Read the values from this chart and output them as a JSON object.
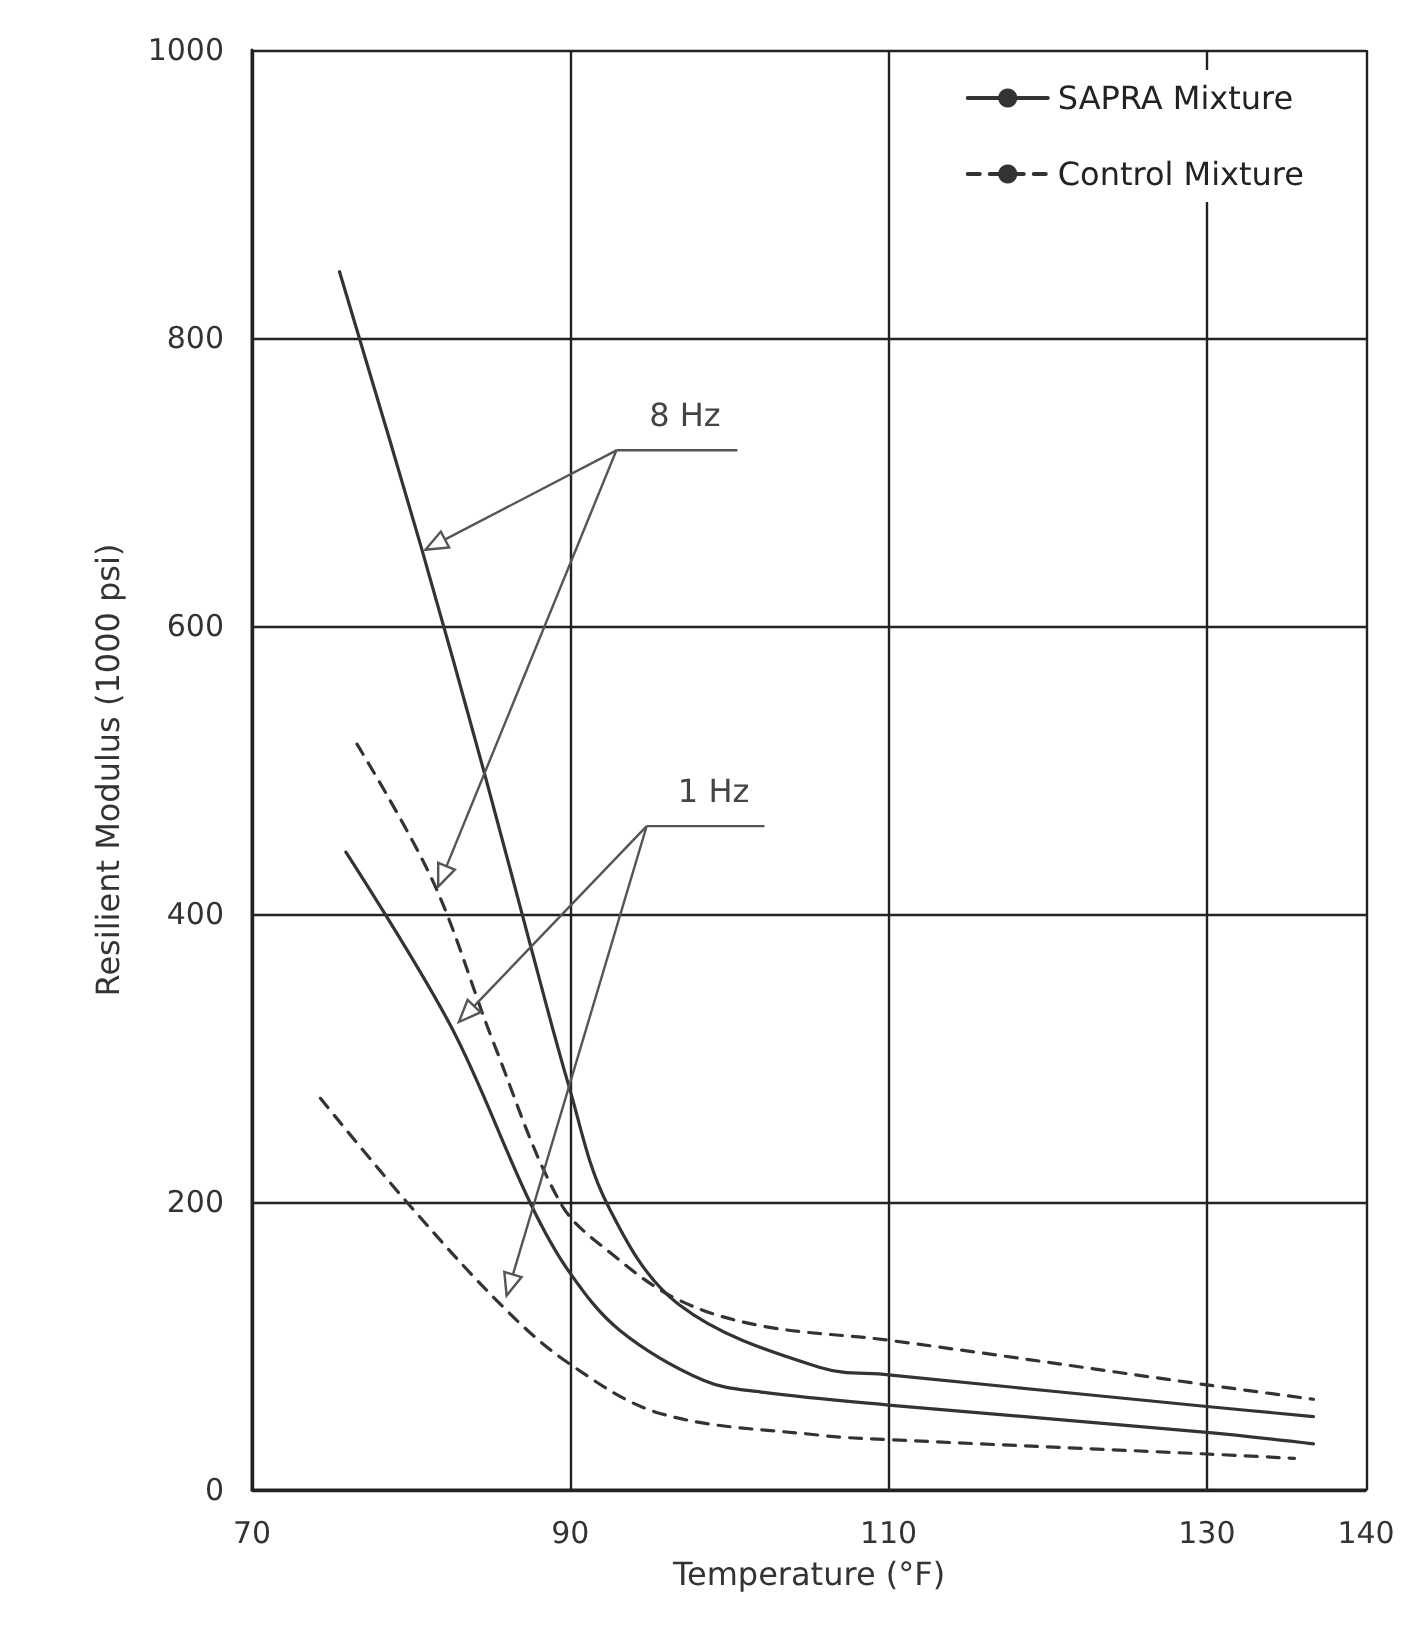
{
  "chart_data": {
    "type": "line",
    "xlabel": "Temperature (°F)",
    "ylabel": "Resilient Modulus (1000 psi)",
    "xlim": [
      70,
      140
    ],
    "xticks": [
      70,
      90,
      110,
      130,
      140
    ],
    "ylim": [
      0,
      1000
    ],
    "yticks": [
      0,
      200,
      400,
      600,
      800,
      1000
    ],
    "grid": true,
    "legend": "top right",
    "marker": "none",
    "annotations": [
      {
        "text": "8 Hz",
        "x": 80.9,
        "y": 653
      },
      {
        "text": "1 Hz",
        "x": 83,
        "y": 325
      }
    ],
    "series": [
      {
        "name": "SAPRA Mixture",
        "color": "#333333",
        "line_style": "solid",
        "x": [
          75.5,
          80.6,
          84.6,
          87.5,
          89.9,
          92.3,
          96.8,
          105.7,
          110,
          130,
          136.7
        ],
        "values": [
          846,
          656,
          498,
          378,
          281,
          199,
          129,
          85,
          80,
          58,
          51
        ]
      },
      {
        "name": "Control Mixture",
        "color": "#333333",
        "line_style": "dashed",
        "x": [
          76.6,
          81.4,
          85.2,
          89.4,
          92.6,
          96.8,
          102,
          110,
          130,
          136.7
        ],
        "values": [
          518,
          422,
          310,
          199,
          164,
          132,
          114,
          104,
          73,
          63
        ]
      },
      {
        "color": "#333333",
        "line_style": "solid",
        "x": [
          75.9,
          82.5,
          87.5,
          89.9,
          93.1,
          98.4,
          102,
          110,
          130,
          136.7
        ],
        "values": [
          443,
          322,
          199,
          152,
          111,
          76,
          68,
          59,
          40,
          32
        ]
      },
      {
        "color": "#333333",
        "line_style": "dashed",
        "x": [
          74.3,
          79.8,
          85.7,
          89.9,
          95.7,
          105.7,
          110,
          130,
          135.5
        ],
        "values": [
          272,
          199,
          128,
          88,
          53,
          38,
          35,
          25,
          22
        ]
      }
    ]
  }
}
